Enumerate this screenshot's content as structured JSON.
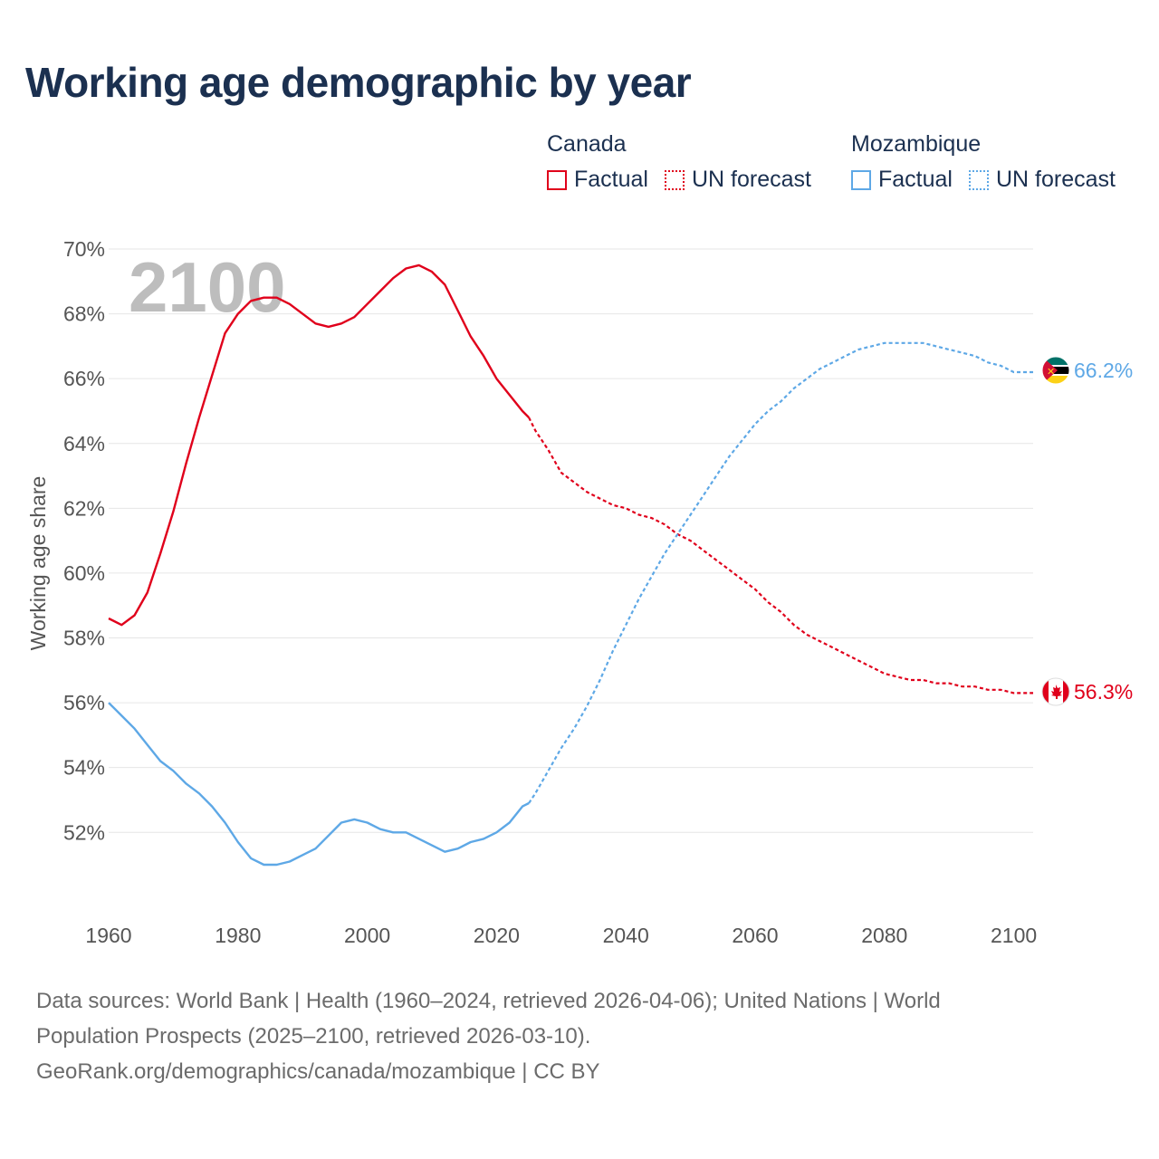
{
  "title": "Working age demographic by year",
  "legend": {
    "canada": {
      "name": "Canada",
      "factual": "Factual",
      "forecast": "UN forecast"
    },
    "mozambique": {
      "name": "Mozambique",
      "factual": "Factual",
      "forecast": "UN forecast"
    }
  },
  "colors": {
    "canada": "#e0001b",
    "mozambique": "#5ea8e6",
    "title": "#1b3050",
    "grid": "#e6e6e6",
    "year_watermark": "#bdbdbd"
  },
  "icons": {
    "canada_flag": "canada-flag-icon",
    "mozambique_flag": "mozambique-flag-icon"
  },
  "source": {
    "line1": "Data sources: World Bank | Health (1960–2024, retrieved 2026-04-06); United Nations | World",
    "line2": "Population Prospects (2025–2100, retrieved 2026-03-10).",
    "line3": "GeoRank.org/demographics/canada/mozambique | CC BY"
  },
  "chart_data": {
    "type": "line",
    "title": "Working age demographic by year",
    "ylabel": "Working age share",
    "xlabel": "",
    "year_label": "2100",
    "xlim": [
      1960,
      2103
    ],
    "ylim": [
      49.8,
      70
    ],
    "x_ticks": [
      1960,
      1980,
      2000,
      2020,
      2040,
      2060,
      2080,
      2100
    ],
    "y_ticks": [
      52,
      54,
      56,
      58,
      60,
      62,
      64,
      66,
      68,
      70
    ],
    "y_tick_labels": [
      "52%",
      "54%",
      "56%",
      "58%",
      "60%",
      "62%",
      "64%",
      "66%",
      "68%",
      "70%"
    ],
    "forecast_start_year": 2025,
    "series": [
      {
        "name": "Canada",
        "color_key": "canada",
        "end_label": "56.3%",
        "points": [
          [
            1960,
            58.6
          ],
          [
            1962,
            58.4
          ],
          [
            1964,
            58.7
          ],
          [
            1966,
            59.4
          ],
          [
            1968,
            60.6
          ],
          [
            1970,
            61.9
          ],
          [
            1972,
            63.4
          ],
          [
            1974,
            64.8
          ],
          [
            1976,
            66.1
          ],
          [
            1978,
            67.4
          ],
          [
            1980,
            68.0
          ],
          [
            1982,
            68.4
          ],
          [
            1984,
            68.5
          ],
          [
            1986,
            68.5
          ],
          [
            1988,
            68.3
          ],
          [
            1990,
            68.0
          ],
          [
            1992,
            67.7
          ],
          [
            1994,
            67.6
          ],
          [
            1996,
            67.7
          ],
          [
            1998,
            67.9
          ],
          [
            2000,
            68.3
          ],
          [
            2002,
            68.7
          ],
          [
            2004,
            69.1
          ],
          [
            2006,
            69.4
          ],
          [
            2008,
            69.5
          ],
          [
            2010,
            69.3
          ],
          [
            2012,
            68.9
          ],
          [
            2014,
            68.1
          ],
          [
            2016,
            67.3
          ],
          [
            2018,
            66.7
          ],
          [
            2020,
            66.0
          ],
          [
            2022,
            65.5
          ],
          [
            2024,
            65.0
          ],
          [
            2025,
            64.8
          ],
          [
            2026,
            64.4
          ],
          [
            2028,
            63.8
          ],
          [
            2030,
            63.1
          ],
          [
            2032,
            62.8
          ],
          [
            2034,
            62.5
          ],
          [
            2036,
            62.3
          ],
          [
            2038,
            62.1
          ],
          [
            2040,
            62.0
          ],
          [
            2042,
            61.8
          ],
          [
            2044,
            61.7
          ],
          [
            2046,
            61.5
          ],
          [
            2048,
            61.2
          ],
          [
            2050,
            61.0
          ],
          [
            2052,
            60.7
          ],
          [
            2054,
            60.4
          ],
          [
            2056,
            60.1
          ],
          [
            2058,
            59.8
          ],
          [
            2060,
            59.5
          ],
          [
            2062,
            59.1
          ],
          [
            2064,
            58.8
          ],
          [
            2066,
            58.4
          ],
          [
            2068,
            58.1
          ],
          [
            2070,
            57.9
          ],
          [
            2072,
            57.7
          ],
          [
            2074,
            57.5
          ],
          [
            2076,
            57.3
          ],
          [
            2078,
            57.1
          ],
          [
            2080,
            56.9
          ],
          [
            2082,
            56.8
          ],
          [
            2084,
            56.7
          ],
          [
            2086,
            56.7
          ],
          [
            2088,
            56.6
          ],
          [
            2090,
            56.6
          ],
          [
            2092,
            56.5
          ],
          [
            2094,
            56.5
          ],
          [
            2096,
            56.4
          ],
          [
            2098,
            56.4
          ],
          [
            2100,
            56.3
          ],
          [
            2101,
            56.3
          ],
          [
            2103,
            56.3
          ]
        ]
      },
      {
        "name": "Mozambique",
        "color_key": "mozambique",
        "end_label": "66.2%",
        "points": [
          [
            1960,
            56.0
          ],
          [
            1962,
            55.6
          ],
          [
            1964,
            55.2
          ],
          [
            1966,
            54.7
          ],
          [
            1968,
            54.2
          ],
          [
            1970,
            53.9
          ],
          [
            1972,
            53.5
          ],
          [
            1974,
            53.2
          ],
          [
            1976,
            52.8
          ],
          [
            1978,
            52.3
          ],
          [
            1980,
            51.7
          ],
          [
            1982,
            51.2
          ],
          [
            1984,
            51.0
          ],
          [
            1986,
            51.0
          ],
          [
            1988,
            51.1
          ],
          [
            1990,
            51.3
          ],
          [
            1992,
            51.5
          ],
          [
            1994,
            51.9
          ],
          [
            1996,
            52.3
          ],
          [
            1998,
            52.4
          ],
          [
            2000,
            52.3
          ],
          [
            2002,
            52.1
          ],
          [
            2004,
            52.0
          ],
          [
            2006,
            52.0
          ],
          [
            2008,
            51.8
          ],
          [
            2010,
            51.6
          ],
          [
            2012,
            51.4
          ],
          [
            2014,
            51.5
          ],
          [
            2016,
            51.7
          ],
          [
            2018,
            51.8
          ],
          [
            2020,
            52.0
          ],
          [
            2022,
            52.3
          ],
          [
            2024,
            52.8
          ],
          [
            2025,
            52.9
          ],
          [
            2026,
            53.2
          ],
          [
            2028,
            53.9
          ],
          [
            2030,
            54.6
          ],
          [
            2032,
            55.2
          ],
          [
            2034,
            55.9
          ],
          [
            2036,
            56.7
          ],
          [
            2038,
            57.6
          ],
          [
            2040,
            58.4
          ],
          [
            2042,
            59.2
          ],
          [
            2044,
            59.9
          ],
          [
            2046,
            60.6
          ],
          [
            2048,
            61.2
          ],
          [
            2050,
            61.8
          ],
          [
            2052,
            62.4
          ],
          [
            2054,
            63.0
          ],
          [
            2056,
            63.6
          ],
          [
            2058,
            64.1
          ],
          [
            2060,
            64.6
          ],
          [
            2062,
            65.0
          ],
          [
            2064,
            65.3
          ],
          [
            2066,
            65.7
          ],
          [
            2068,
            66.0
          ],
          [
            2070,
            66.3
          ],
          [
            2072,
            66.5
          ],
          [
            2074,
            66.7
          ],
          [
            2076,
            66.9
          ],
          [
            2078,
            67.0
          ],
          [
            2080,
            67.1
          ],
          [
            2082,
            67.1
          ],
          [
            2084,
            67.1
          ],
          [
            2086,
            67.1
          ],
          [
            2088,
            67.0
          ],
          [
            2090,
            66.9
          ],
          [
            2092,
            66.8
          ],
          [
            2094,
            66.7
          ],
          [
            2096,
            66.5
          ],
          [
            2098,
            66.4
          ],
          [
            2100,
            66.2
          ],
          [
            2103,
            66.2
          ]
        ]
      }
    ]
  }
}
